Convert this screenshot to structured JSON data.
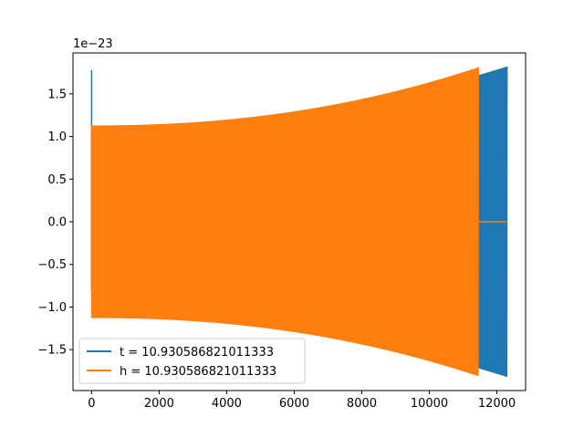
{
  "chart_data": {
    "type": "line",
    "title": "",
    "xlabel": "",
    "ylabel": "",
    "offset_text": "1e−23",
    "xlim": [
      -550,
      12850
    ],
    "ylim": [
      -1.98,
      1.98
    ],
    "x_ticks": [
      {
        "value": 0,
        "label": "0"
      },
      {
        "value": 2000,
        "label": "2000"
      },
      {
        "value": 4000,
        "label": "4000"
      },
      {
        "value": 6000,
        "label": "6000"
      },
      {
        "value": 8000,
        "label": "8000"
      },
      {
        "value": 10000,
        "label": "10000"
      },
      {
        "value": 12000,
        "label": "12000"
      }
    ],
    "y_ticks": [
      {
        "value": 1.5,
        "label": "1.5"
      },
      {
        "value": 1.0,
        "label": "1.0"
      },
      {
        "value": 0.5,
        "label": "0.5"
      },
      {
        "value": 0.0,
        "label": "0.0"
      },
      {
        "value": -0.5,
        "label": "−0.5"
      },
      {
        "value": -1.0,
        "label": "−1.0"
      },
      {
        "value": -1.5,
        "label": "−1.5"
      }
    ],
    "legend_position": "lower-left",
    "series": [
      {
        "name": "t = 10.930586821011333",
        "color": "#1f77b4",
        "spike": {
          "x": 0,
          "ymin": -0.8,
          "ymax": 1.78
        },
        "oscillation_start": 0,
        "oscillation_end": 12300,
        "envelope_start": 1.12,
        "envelope_end": 1.82,
        "tail_value": 0.0
      },
      {
        "name": "h = 10.930586821011333",
        "color": "#ff7f0e",
        "oscillation_start": 0,
        "oscillation_end": 11450,
        "envelope_start": 1.13,
        "envelope_end": 1.81,
        "tail_start": 11450,
        "tail_end": 12300,
        "tail_value": 0.0
      }
    ]
  }
}
